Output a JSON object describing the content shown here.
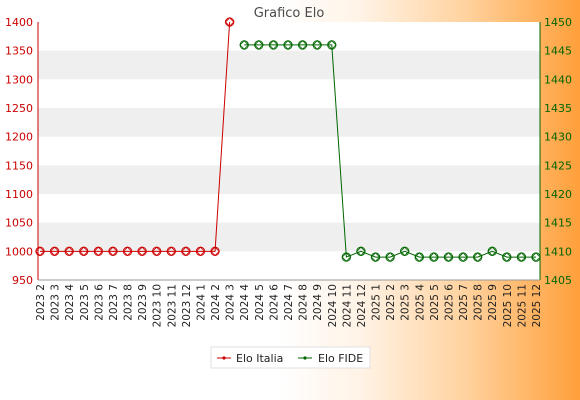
{
  "chart_data": {
    "type": "line",
    "title": "Grafico Elo",
    "colors": {
      "left_axis": "#cc0000",
      "right_axis": "#006600",
      "band": "#efefef",
      "plot_bg": "#ffffff"
    },
    "x": [
      "2023 2",
      "2023 3",
      "2023 4",
      "2023 5",
      "2023 6",
      "2023 7",
      "2023 8",
      "2023 9",
      "2023 10",
      "2023 11",
      "2023 12",
      "2024 1",
      "2024 2",
      "2024 3",
      "2024 4",
      "2024 5",
      "2024 6",
      "2024 7",
      "2024 8",
      "2024 9",
      "2024 10",
      "2024 11",
      "2024 12",
      "2025 1",
      "2025 2",
      "2025 3",
      "2025 4",
      "2025 5",
      "2025 6",
      "2025 7",
      "2025 8",
      "2025 9",
      "2025 10",
      "2025 11",
      "2025 12"
    ],
    "left_axis": {
      "range": [
        950,
        1400
      ],
      "ticks": [
        950,
        1000,
        1050,
        1100,
        1150,
        1200,
        1250,
        1300,
        1350,
        1400
      ]
    },
    "right_axis": {
      "range": [
        1405,
        1450
      ],
      "ticks": [
        1405,
        1410,
        1415,
        1420,
        1425,
        1430,
        1435,
        1440,
        1445,
        1450
      ]
    },
    "grid": "horizontal bands",
    "legend_position": "bottom-center",
    "series": [
      {
        "name": "Elo Italia",
        "axis": "left",
        "color": "#cc0000",
        "values": [
          1000,
          1000,
          1000,
          1000,
          1000,
          1000,
          1000,
          1000,
          1000,
          1000,
          1000,
          1000,
          1000,
          1400,
          null,
          null,
          null,
          null,
          null,
          null,
          null,
          null,
          null,
          null,
          null,
          null,
          null,
          null,
          null,
          null,
          null,
          null,
          null,
          null,
          null
        ]
      },
      {
        "name": "Elo FIDE",
        "axis": "right",
        "color": "#006600",
        "values": [
          null,
          null,
          null,
          null,
          null,
          null,
          null,
          null,
          null,
          null,
          null,
          null,
          null,
          null,
          1446,
          1446,
          1446,
          1446,
          1446,
          1446,
          1446,
          1409,
          1410,
          1409,
          1409,
          1410,
          1409,
          1409,
          1409,
          1409,
          1409,
          1410,
          1409,
          1409,
          1409
        ]
      }
    ]
  }
}
